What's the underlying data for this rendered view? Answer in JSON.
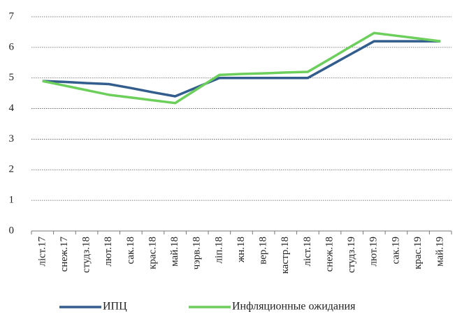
{
  "chart_data": {
    "type": "line",
    "categories": [
      "ліст.17",
      "снеж.17",
      "студз.18",
      "лют.18",
      "сак.18",
      "крас.18",
      "май.18",
      "чэрв.18",
      "ліп.18",
      "жн.18",
      "вер.18",
      "кастр.18",
      "ліст.18",
      "снеж.18",
      "студз.19",
      "лют.19",
      "сак.19",
      "крас.19",
      "май.19"
    ],
    "series": [
      {
        "name": "ИПЦ",
        "color": "#325d8c",
        "values": [
          4.9,
          4.87,
          4.83,
          4.8,
          4.67,
          4.53,
          4.4,
          4.7,
          5.0,
          5.0,
          5.0,
          5.0,
          5.0,
          5.4,
          5.8,
          6.2,
          6.2,
          6.2,
          6.2
        ]
      },
      {
        "name": "Инфляционные ожидания",
        "color": "#6ccf5c",
        "values": [
          4.9,
          4.75,
          4.6,
          4.45,
          4.36,
          4.27,
          4.18,
          4.64,
          5.1,
          5.13,
          5.15,
          5.18,
          5.2,
          5.62,
          6.05,
          6.47,
          6.38,
          6.29,
          6.2
        ]
      }
    ],
    "ylim": [
      0,
      7
    ],
    "yticks": [
      0,
      1,
      2,
      3,
      4,
      5,
      6,
      7
    ],
    "grid": true,
    "legend": "bottom"
  }
}
